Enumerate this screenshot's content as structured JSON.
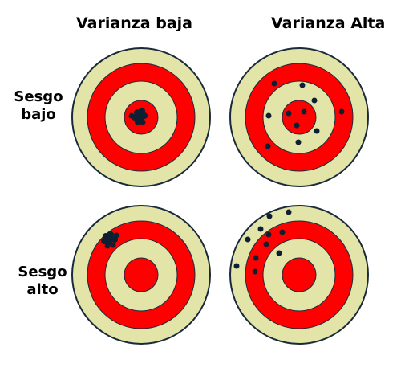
{
  "columns": {
    "low_variance": "Varianza baja",
    "high_variance": "Varianza Alta"
  },
  "rows": {
    "low_bias": {
      "line1": "Sesgo",
      "line2": "bajo"
    },
    "high_bias": {
      "line1": "Sesgo",
      "line2": "alto"
    }
  },
  "colors": {
    "outer_ring": "#e3e5a8",
    "red_ring": "#ff0000",
    "outline": "#1a2a3a",
    "dot": "#0d1f33"
  }
}
